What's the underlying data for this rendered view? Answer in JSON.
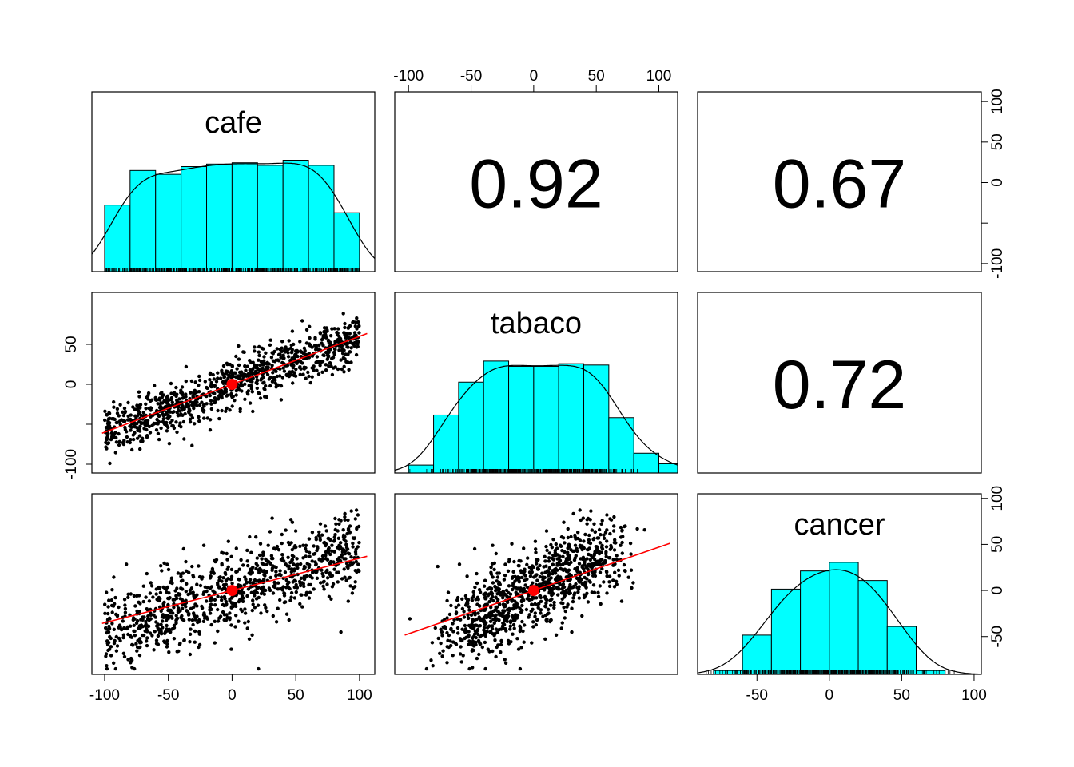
{
  "chart_data": {
    "type": "scatterplot-matrix",
    "variables": [
      "cafe",
      "tabaco",
      "cancer"
    ],
    "colors": {
      "histogram_fill": "#00ffff",
      "bar_stroke": "#000000",
      "points": "#000000",
      "fit_line": "#ff0000",
      "center_point": "#ff0000",
      "density_line": "#000000"
    },
    "axes": {
      "cafe": {
        "range": [
          -110,
          112
        ],
        "ticks": [
          -100,
          -50,
          0,
          50,
          100
        ]
      },
      "tabaco": {
        "range": [
          -111,
          115
        ],
        "ticks": [
          -100,
          -50,
          0,
          50,
          100
        ]
      },
      "cancer": {
        "range": [
          -91,
          105
        ],
        "ticks": [
          -50,
          0,
          50,
          100
        ]
      }
    },
    "axis_labels": {
      "bottom_cafe": [
        "-100",
        "-50",
        "0",
        "50",
        "100"
      ],
      "top_tabaco": [
        "-100",
        "-50",
        "0",
        "50",
        "100"
      ],
      "right_cafe": [
        "100",
        "50",
        "0",
        "",
        "-100"
      ],
      "left_tabaco": [
        "50",
        "0",
        "",
        "-100"
      ],
      "right_cancer": [
        "100",
        "50",
        "0",
        "-50"
      ],
      "bottom_cancer": [
        "-50",
        "0",
        "50",
        "100"
      ]
    },
    "correlations": [
      {
        "row": 0,
        "col": 1,
        "pair": [
          "cafe",
          "tabaco"
        ],
        "value": "0.92"
      },
      {
        "row": 0,
        "col": 2,
        "pair": [
          "cafe",
          "cancer"
        ],
        "value": "0.67"
      },
      {
        "row": 1,
        "col": 2,
        "pair": [
          "tabaco",
          "cancer"
        ],
        "value": "0.72"
      }
    ],
    "histograms": {
      "cafe": {
        "bin_edges": [
          -100,
          -80,
          -60,
          -40,
          -20,
          0,
          20,
          40,
          60,
          80,
          100
        ],
        "density": [
          0.0052,
          0.0079,
          0.0076,
          0.0082,
          0.0084,
          0.0085,
          0.0083,
          0.0087,
          0.0083,
          0.0046
        ]
      },
      "tabaco": {
        "bin_edges": [
          -100,
          -80,
          -60,
          -40,
          -20,
          0,
          20,
          40,
          60,
          80,
          100,
          120
        ],
        "density": [
          0.0006,
          0.0044,
          0.0069,
          0.0085,
          0.0081,
          0.0081,
          0.0083,
          0.0082,
          0.0042,
          0.0015,
          0.0007
        ]
      },
      "cancer": {
        "bin_edges": [
          -80,
          -60,
          -40,
          -20,
          0,
          20,
          40,
          60,
          80
        ],
        "density": [
          0.0004,
          0.0041,
          0.0089,
          0.0108,
          0.0117,
          0.0098,
          0.005,
          0.0004
        ]
      }
    },
    "scatter": {
      "n_points": 1000,
      "panels": [
        {
          "x": "cafe",
          "y": "tabaco",
          "slope": 0.6,
          "intercept": 0,
          "center": [
            0,
            0
          ]
        },
        {
          "x": "cafe",
          "y": "cancer",
          "slope": 0.35,
          "intercept": 0,
          "center": [
            0,
            0
          ]
        },
        {
          "x": "tabaco",
          "y": "cancer",
          "slope": 0.47,
          "intercept": 0,
          "center": [
            0,
            0
          ]
        }
      ]
    }
  }
}
